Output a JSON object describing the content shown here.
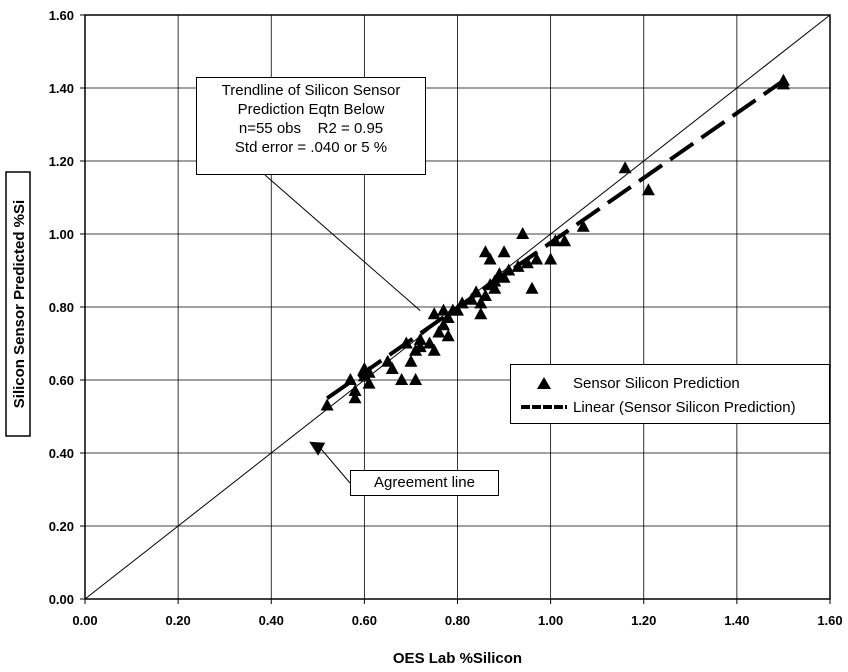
{
  "chart_data": {
    "type": "scatter",
    "xlabel": "OES Lab %Silicon",
    "ylabel": "Silicon Sensor Predicted %Si",
    "xlim": [
      0,
      1.6
    ],
    "ylim": [
      0,
      1.6
    ],
    "x_ticks": [
      "0.00",
      "0.20",
      "0.40",
      "0.60",
      "0.80",
      "1.00",
      "1.20",
      "1.40",
      "1.60"
    ],
    "y_ticks": [
      "0.00",
      "0.20",
      "0.40",
      "0.60",
      "0.80",
      "1.00",
      "1.20",
      "1.40",
      "1.60"
    ],
    "grid": true,
    "legend_position": "right",
    "series": [
      {
        "name": "Sensor Silicon Prediction",
        "marker": "triangle",
        "color": "#000000",
        "points": [
          [
            0.52,
            0.53
          ],
          [
            0.57,
            0.6
          ],
          [
            0.58,
            0.57
          ],
          [
            0.58,
            0.55
          ],
          [
            0.6,
            0.61
          ],
          [
            0.6,
            0.63
          ],
          [
            0.61,
            0.59
          ],
          [
            0.61,
            0.62
          ],
          [
            0.65,
            0.65
          ],
          [
            0.66,
            0.63
          ],
          [
            0.68,
            0.6
          ],
          [
            0.69,
            0.7
          ],
          [
            0.7,
            0.65
          ],
          [
            0.71,
            0.6
          ],
          [
            0.71,
            0.68
          ],
          [
            0.72,
            0.69
          ],
          [
            0.72,
            0.71
          ],
          [
            0.74,
            0.7
          ],
          [
            0.75,
            0.68
          ],
          [
            0.75,
            0.78
          ],
          [
            0.76,
            0.73
          ],
          [
            0.77,
            0.79
          ],
          [
            0.77,
            0.75
          ],
          [
            0.78,
            0.72
          ],
          [
            0.78,
            0.77
          ],
          [
            0.79,
            0.79
          ],
          [
            0.8,
            0.79
          ],
          [
            0.81,
            0.81
          ],
          [
            0.83,
            0.82
          ],
          [
            0.84,
            0.84
          ],
          [
            0.85,
            0.78
          ],
          [
            0.85,
            0.81
          ],
          [
            0.86,
            0.83
          ],
          [
            0.86,
            0.95
          ],
          [
            0.87,
            0.93
          ],
          [
            0.87,
            0.86
          ],
          [
            0.88,
            0.87
          ],
          [
            0.88,
            0.85
          ],
          [
            0.89,
            0.89
          ],
          [
            0.9,
            0.88
          ],
          [
            0.9,
            0.95
          ],
          [
            0.91,
            0.9
          ],
          [
            0.93,
            0.91
          ],
          [
            0.94,
            1.0
          ],
          [
            0.95,
            0.92
          ],
          [
            0.96,
            0.85
          ],
          [
            0.97,
            0.93
          ],
          [
            1.0,
            0.93
          ],
          [
            1.01,
            0.98
          ],
          [
            1.03,
            0.98
          ],
          [
            1.07,
            1.02
          ],
          [
            1.16,
            1.18
          ],
          [
            1.21,
            1.12
          ],
          [
            1.5,
            1.41
          ],
          [
            1.5,
            1.42
          ]
        ]
      },
      {
        "name": "Linear (Sensor Silicon Prediction)",
        "style": "dashed",
        "color": "#000000",
        "line": [
          [
            0.52,
            0.55
          ],
          [
            1.5,
            1.42
          ]
        ]
      }
    ],
    "reference_line": [
      [
        0,
        0
      ],
      [
        1.6,
        1.6
      ]
    ],
    "annotations": [
      {
        "lines": [
          "Trendline of Silicon Sensor",
          "Prediction Eqtn Below",
          "n=55 obs    R2 = 0.95",
          "Std error = .040 or 5 %"
        ],
        "points_to": [
          0.72,
          0.79
        ]
      },
      {
        "text": "Agreement line",
        "points_to": [
          0.49,
          0.42
        ]
      }
    ]
  }
}
